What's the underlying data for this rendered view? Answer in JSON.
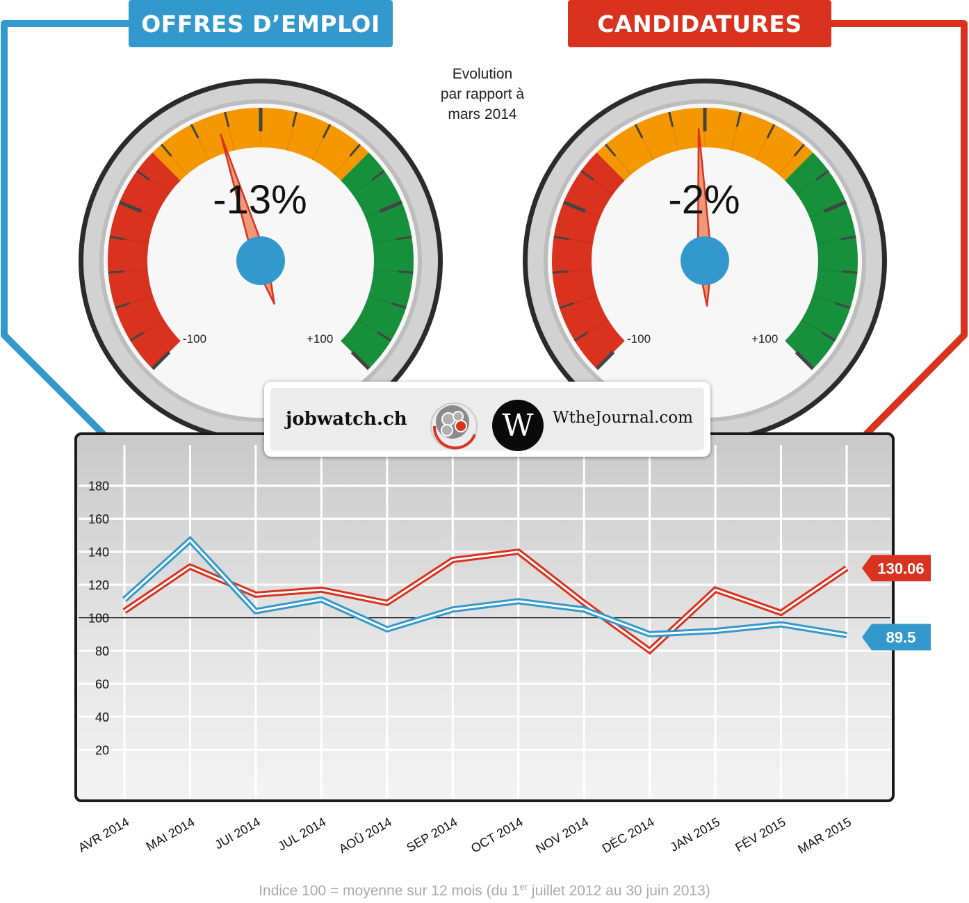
{
  "titles": {
    "left": "OFFRES D’EMPLOI",
    "right": "CANDIDATURES"
  },
  "subtitle": [
    "Evolution",
    "par rapport à",
    "mars 2014"
  ],
  "colors": {
    "blue": "#3399cc",
    "red": "#d9321e",
    "green": "#16903a",
    "orange": "#f59700",
    "gauge_red": "#d9321e"
  },
  "gauges": {
    "left": {
      "value": -13,
      "label": "-13%",
      "min_label": "-100",
      "max_label": "+100"
    },
    "right": {
      "value": -2,
      "label": "-2%",
      "min_label": "-100",
      "max_label": "+100"
    }
  },
  "logos": {
    "jobwatch": "jobwatch.ch",
    "w_letter": "W",
    "wthejournal": "WtheJournal.com"
  },
  "footnote": {
    "before": "Indice 100 = moyenne sur 12 mois (du 1",
    "sup": "er",
    "after": " juillet 2012 au 30 juin 2013)"
  },
  "chart_data": {
    "type": "line",
    "categories": [
      "AVR 2014",
      "MAI 2014",
      "JUI 2014",
      "JUL 2014",
      "AOÛ 2014",
      "SEP 2014",
      "OCT 2014",
      "NOV 2014",
      "DÉC 2014",
      "JAN 2015",
      "FÉV 2015",
      "MAR 2015"
    ],
    "ylim": [
      0,
      190
    ],
    "yticks": [
      20,
      40,
      60,
      80,
      100,
      120,
      140,
      160,
      180
    ],
    "reference_line": 100,
    "grid": true,
    "series": [
      {
        "name": "CANDIDATURES",
        "color": "#d9321e",
        "values": [
          104,
          131,
          114,
          117,
          109,
          135,
          140,
          109,
          80,
          117,
          103,
          130.06
        ],
        "end_label": "130.06"
      },
      {
        "name": "OFFRES D’EMPLOI",
        "color": "#3399cc",
        "values": [
          111,
          147,
          104,
          111,
          93,
          105,
          110,
          105,
          90,
          92,
          96,
          89.5
        ],
        "end_label": "89.5"
      }
    ]
  }
}
